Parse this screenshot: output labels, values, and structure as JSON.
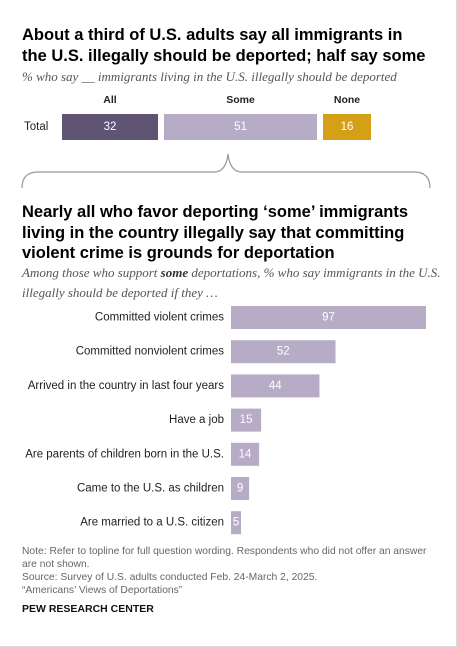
{
  "chart_data": [
    {
      "type": "stacked_bar",
      "title": "About a third of U.S. adults say all immigrants in the U.S. illegally should be deported; half say some",
      "subtitle": "% who say __ immigrants living in the U.S. illegally should be deported",
      "categories": [
        "Total"
      ],
      "series": [
        {
          "name": "All",
          "color": "#5f5474",
          "values": [
            32
          ]
        },
        {
          "name": "Some",
          "color": "#b7acc6",
          "values": [
            51
          ]
        },
        {
          "name": "None",
          "color": "#d4a017",
          "values": [
            16
          ]
        }
      ]
    },
    {
      "type": "bar",
      "title": "Nearly all who favor deporting ‘some’ immigrants living in the country illegally say that committing violent crime is grounds for deportation",
      "subtitle": [
        "Among those who support ",
        "some",
        " deportations, % who say immigrants in the U.S. illegally should be deported if they …"
      ],
      "categories": [
        "Committed violent crimes",
        "Committed nonviolent crimes",
        "Arrived in the country in last four years",
        "Have a job",
        "Are parents of children born in the U.S.",
        "Came to the U.S. as children",
        "Are married to a U.S. citizen"
      ],
      "values": [
        97,
        52,
        44,
        15,
        14,
        9,
        5
      ],
      "color": "#b7acc6"
    }
  ],
  "notes": [
    "Note: Refer to topline for full question wording. Respondents who did not offer an answer are not shown.",
    "Source: Survey of U.S. adults conducted Feb. 24-March 2, 2025.",
    "“Americans’ Views of Deportations”"
  ],
  "footer": "PEW RESEARCH CENTER"
}
